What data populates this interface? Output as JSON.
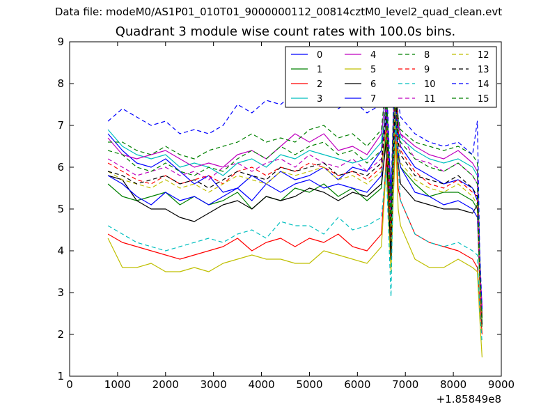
{
  "figure": {
    "supertitle": "Data file: modeM0/AS1P01_010T01_9000000112_00814cztM0_level2_quad_clean.evt",
    "title": "Quadrant 3 module wise count rates with 100.0s bins."
  },
  "chart_data": {
    "type": "line",
    "xlim": [
      0,
      9000
    ],
    "ylim": [
      1,
      9
    ],
    "x_offset_label": "+1.85849e8",
    "xticks": [
      0,
      1000,
      2000,
      3000,
      4000,
      5000,
      6000,
      7000,
      8000,
      9000
    ],
    "yticks": [
      1,
      2,
      3,
      4,
      5,
      6,
      7,
      8,
      9
    ],
    "grid": false,
    "legend": {
      "placement": "top-right",
      "columns": 4
    },
    "x": [
      800,
      1100,
      1400,
      1700,
      2000,
      2300,
      2600,
      2900,
      3200,
      3500,
      3800,
      4100,
      4400,
      4700,
      5000,
      5300,
      5600,
      5900,
      6200,
      6500,
      6600,
      6700,
      6750,
      6800,
      6850,
      6900,
      7200,
      7500,
      7800,
      8100,
      8400,
      8500,
      8550,
      8600
    ],
    "series": [
      {
        "name": "0",
        "color": "#0000ff",
        "dash": "solid",
        "values": [
          6.8,
          6.4,
          6.1,
          6.0,
          6.2,
          5.9,
          5.6,
          5.8,
          5.4,
          5.5,
          5.8,
          5.6,
          5.9,
          5.7,
          5.8,
          6.0,
          5.7,
          6.0,
          5.9,
          6.4,
          7.5,
          5.5,
          6.5,
          7.6,
          6.8,
          6.5,
          6.0,
          5.8,
          5.6,
          5.7,
          5.5,
          5.2,
          3.5,
          2.6
        ]
      },
      {
        "name": "1",
        "color": "#008000",
        "dash": "solid",
        "values": [
          5.6,
          5.3,
          5.2,
          5.3,
          5.4,
          5.1,
          5.3,
          5.1,
          5.2,
          5.4,
          5.0,
          5.3,
          5.2,
          5.5,
          5.4,
          5.6,
          5.3,
          5.5,
          5.2,
          5.5,
          6.8,
          4.2,
          6.0,
          7.2,
          6.3,
          6.0,
          5.6,
          5.3,
          5.4,
          5.4,
          5.2,
          5.0,
          3.2,
          2.3
        ]
      },
      {
        "name": "2",
        "color": "#ff0000",
        "dash": "solid",
        "values": [
          4.4,
          4.2,
          4.1,
          4.0,
          3.9,
          3.8,
          3.9,
          4.0,
          4.1,
          4.3,
          4.0,
          4.2,
          4.3,
          4.1,
          4.3,
          4.2,
          4.4,
          4.1,
          4.0,
          4.4,
          6.2,
          3.6,
          5.5,
          6.9,
          5.5,
          5.2,
          4.4,
          4.2,
          4.1,
          4.0,
          3.8,
          3.6,
          2.8,
          2.0
        ]
      },
      {
        "name": "3",
        "color": "#00bfbf",
        "dash": "solid",
        "values": [
          6.9,
          6.5,
          6.3,
          6.2,
          6.3,
          6.0,
          6.1,
          6.0,
          5.8,
          6.1,
          6.2,
          6.0,
          6.3,
          6.2,
          6.4,
          6.3,
          6.2,
          6.1,
          6.2,
          6.6,
          8.2,
          4.5,
          7.0,
          8.0,
          7.2,
          6.7,
          6.4,
          6.2,
          6.1,
          6.2,
          6.0,
          5.8,
          3.8,
          2.5
        ]
      },
      {
        "name": "4",
        "color": "#bf00bf",
        "dash": "solid",
        "values": [
          6.7,
          6.3,
          6.2,
          6.3,
          6.4,
          6.2,
          6.0,
          6.1,
          6.0,
          6.3,
          6.4,
          6.2,
          6.5,
          6.8,
          6.6,
          6.8,
          6.4,
          6.5,
          6.3,
          6.8,
          7.8,
          4.8,
          7.2,
          7.9,
          7.0,
          6.8,
          6.5,
          6.3,
          6.2,
          6.4,
          6.1,
          5.9,
          3.6,
          2.7
        ]
      },
      {
        "name": "5",
        "color": "#bfbf00",
        "dash": "solid",
        "values": [
          4.3,
          3.6,
          3.6,
          3.7,
          3.5,
          3.5,
          3.6,
          3.5,
          3.7,
          3.8,
          3.9,
          3.8,
          3.8,
          3.7,
          3.7,
          4.0,
          3.9,
          3.8,
          3.7,
          4.1,
          6.0,
          3.5,
          5.3,
          6.6,
          5.0,
          4.6,
          3.8,
          3.6,
          3.6,
          3.8,
          3.6,
          3.5,
          2.4,
          1.45
        ]
      },
      {
        "name": "6",
        "color": "#000000",
        "dash": "solid",
        "values": [
          5.8,
          5.7,
          5.2,
          5.0,
          5.0,
          4.8,
          4.7,
          4.9,
          5.1,
          5.2,
          5.0,
          5.3,
          5.2,
          5.3,
          5.5,
          5.4,
          5.2,
          5.4,
          5.3,
          5.6,
          6.6,
          3.8,
          6.2,
          7.5,
          6.1,
          5.6,
          5.2,
          5.1,
          5.0,
          5.0,
          4.9,
          5.1,
          3.8,
          2.4
        ]
      },
      {
        "name": "7",
        "color": "#0000ff",
        "dash": "solid",
        "values": [
          5.8,
          5.6,
          5.3,
          5.1,
          5.4,
          5.2,
          5.3,
          5.1,
          5.3,
          5.5,
          5.2,
          5.6,
          5.4,
          5.6,
          5.7,
          5.5,
          5.6,
          5.5,
          5.4,
          5.8,
          7.2,
          4.4,
          6.5,
          7.4,
          6.4,
          6.0,
          5.4,
          5.3,
          5.1,
          5.2,
          5.0,
          4.8,
          3.4,
          2.2
        ]
      },
      {
        "name": "8",
        "color": "#008000",
        "dash": "dashed",
        "values": [
          6.6,
          6.6,
          6.4,
          6.3,
          6.5,
          6.3,
          6.2,
          6.4,
          6.5,
          6.6,
          6.8,
          6.6,
          6.7,
          6.6,
          6.9,
          7.0,
          6.7,
          6.8,
          6.5,
          6.9,
          8.1,
          5.0,
          7.3,
          8.3,
          7.2,
          6.9,
          6.6,
          6.5,
          6.4,
          6.5,
          6.3,
          6.1,
          3.9,
          2.1
        ]
      },
      {
        "name": "9",
        "color": "#ff0000",
        "dash": "dashed",
        "values": [
          6.1,
          5.9,
          5.7,
          5.6,
          5.8,
          5.6,
          5.7,
          5.8,
          5.6,
          5.9,
          6.0,
          5.8,
          6.0,
          5.9,
          6.1,
          6.0,
          5.8,
          5.9,
          5.7,
          6.0,
          7.0,
          4.3,
          6.7,
          8.2,
          6.9,
          6.4,
          5.9,
          5.6,
          5.5,
          5.7,
          5.4,
          5.3,
          3.4,
          2.4
        ]
      },
      {
        "name": "10",
        "color": "#00bfbf",
        "dash": "dashed",
        "values": [
          4.6,
          4.4,
          4.2,
          4.1,
          4.0,
          4.1,
          4.2,
          4.3,
          4.2,
          4.4,
          4.5,
          4.3,
          4.7,
          4.6,
          4.6,
          4.4,
          4.8,
          4.5,
          4.6,
          4.8,
          6.0,
          2.9,
          6.0,
          7.0,
          6.0,
          5.2,
          4.4,
          4.2,
          4.1,
          4.2,
          4.0,
          3.9,
          2.6,
          1.8
        ]
      },
      {
        "name": "11",
        "color": "#bf00bf",
        "dash": "dashed",
        "values": [
          6.2,
          6.0,
          5.8,
          5.9,
          6.0,
          5.8,
          5.9,
          5.7,
          6.0,
          6.1,
          5.9,
          6.1,
          6.2,
          6.0,
          6.3,
          6.1,
          6.0,
          6.2,
          5.9,
          6.2,
          7.4,
          4.6,
          7.1,
          8.4,
          7.1,
          6.8,
          6.2,
          6.1,
          5.9,
          6.1,
          5.8,
          5.6,
          3.7,
          2.6
        ]
      },
      {
        "name": "12",
        "color": "#bfbf00",
        "dash": "dashed",
        "values": [
          5.9,
          5.7,
          5.6,
          5.5,
          5.7,
          5.5,
          5.6,
          5.4,
          5.6,
          5.8,
          5.7,
          5.6,
          5.9,
          5.8,
          5.9,
          6.0,
          5.7,
          5.8,
          5.6,
          5.9,
          7.0,
          4.2,
          6.4,
          7.5,
          6.4,
          6.1,
          5.7,
          5.5,
          5.4,
          5.6,
          5.3,
          5.1,
          3.3,
          2.1
        ]
      },
      {
        "name": "13",
        "color": "#000000",
        "dash": "dashed",
        "values": [
          5.9,
          5.8,
          5.6,
          5.7,
          5.8,
          5.6,
          5.7,
          5.5,
          5.7,
          5.9,
          5.8,
          5.7,
          6.0,
          5.9,
          6.0,
          6.1,
          5.8,
          5.9,
          5.8,
          6.1,
          7.3,
          4.4,
          6.6,
          7.7,
          6.6,
          6.3,
          5.8,
          5.7,
          5.6,
          5.8,
          5.5,
          5.3,
          3.5,
          2.2
        ]
      },
      {
        "name": "14",
        "color": "#0000ff",
        "dash": "dashed",
        "values": [
          7.1,
          7.4,
          7.2,
          7.0,
          7.1,
          6.8,
          6.9,
          6.8,
          7.0,
          7.5,
          7.3,
          7.6,
          7.5,
          7.8,
          7.6,
          7.7,
          7.4,
          7.6,
          7.3,
          7.5,
          8.3,
          5.3,
          7.4,
          8.3,
          7.6,
          7.2,
          6.8,
          6.6,
          6.5,
          6.6,
          6.3,
          7.1,
          4.0,
          2.6
        ]
      },
      {
        "name": "15",
        "color": "#008000",
        "dash": "dashed",
        "values": [
          6.4,
          6.3,
          6.0,
          5.9,
          6.1,
          5.9,
          5.8,
          6.0,
          5.9,
          6.2,
          6.4,
          6.2,
          6.5,
          6.3,
          6.5,
          6.6,
          6.3,
          6.4,
          6.1,
          6.4,
          7.6,
          4.6,
          7.0,
          8.0,
          6.9,
          6.6,
          6.2,
          6.0,
          5.9,
          6.1,
          5.8,
          5.6,
          3.6,
          2.3
        ]
      }
    ]
  }
}
